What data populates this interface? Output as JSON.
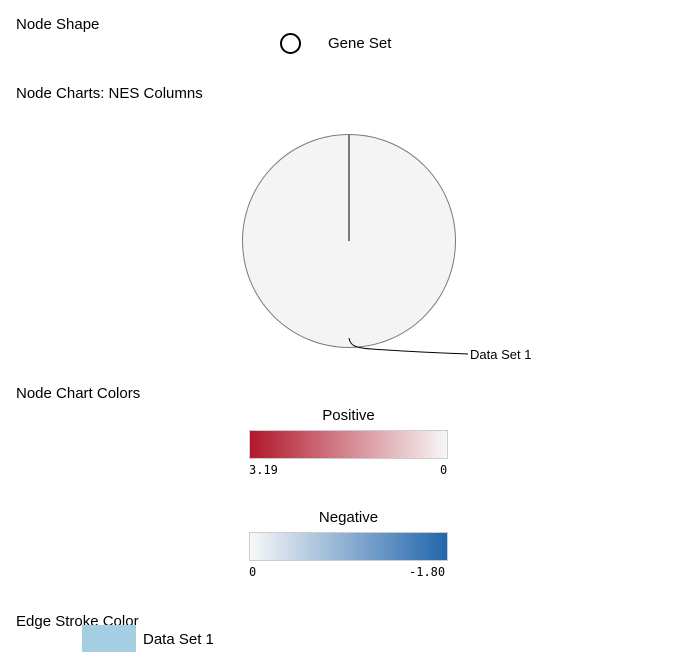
{
  "node_shape": {
    "title": "Node Shape",
    "label": "Gene Set"
  },
  "node_charts": {
    "title": "Node Charts: NES Columns",
    "slice_label": "Data Set 1",
    "fill_color": "#f4f4f4"
  },
  "node_chart_colors": {
    "title": "Node Chart Colors",
    "positive": {
      "title": "Positive",
      "min_label": "3.19",
      "max_label": "0",
      "color_start": "#b2182b",
      "color_end": "#f7f7f7"
    },
    "negative": {
      "title": "Negative",
      "min_label": "0",
      "max_label": "-1.80",
      "color_start": "#f7f7f7",
      "color_end": "#2166ac"
    }
  },
  "edge_stroke": {
    "title": "Edge Stroke Color",
    "label": "Data Set 1",
    "color": "#a6cee3"
  }
}
